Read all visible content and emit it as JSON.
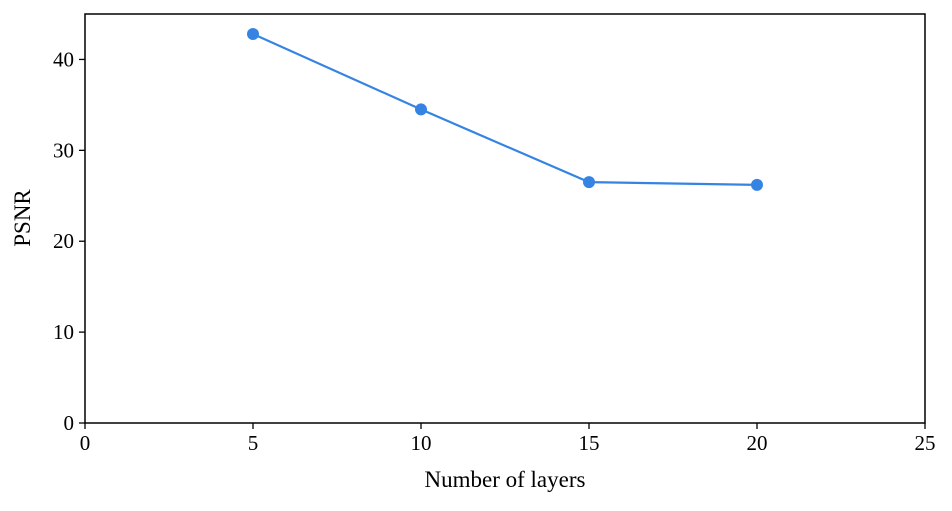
{
  "chart_data": {
    "type": "line",
    "xlabel": "Number of layers",
    "ylabel": "PSNR",
    "xlim": [
      0,
      25
    ],
    "ylim": [
      0,
      45
    ],
    "xticks": [
      0,
      5,
      10,
      15,
      20,
      25
    ],
    "yticks": [
      0,
      10,
      20,
      30,
      40
    ],
    "grid": false,
    "series": [
      {
        "color": "#3584e4",
        "x": [
          5,
          10,
          15,
          20
        ],
        "y": [
          42.8,
          34.5,
          26.5,
          26.2
        ]
      }
    ]
  }
}
